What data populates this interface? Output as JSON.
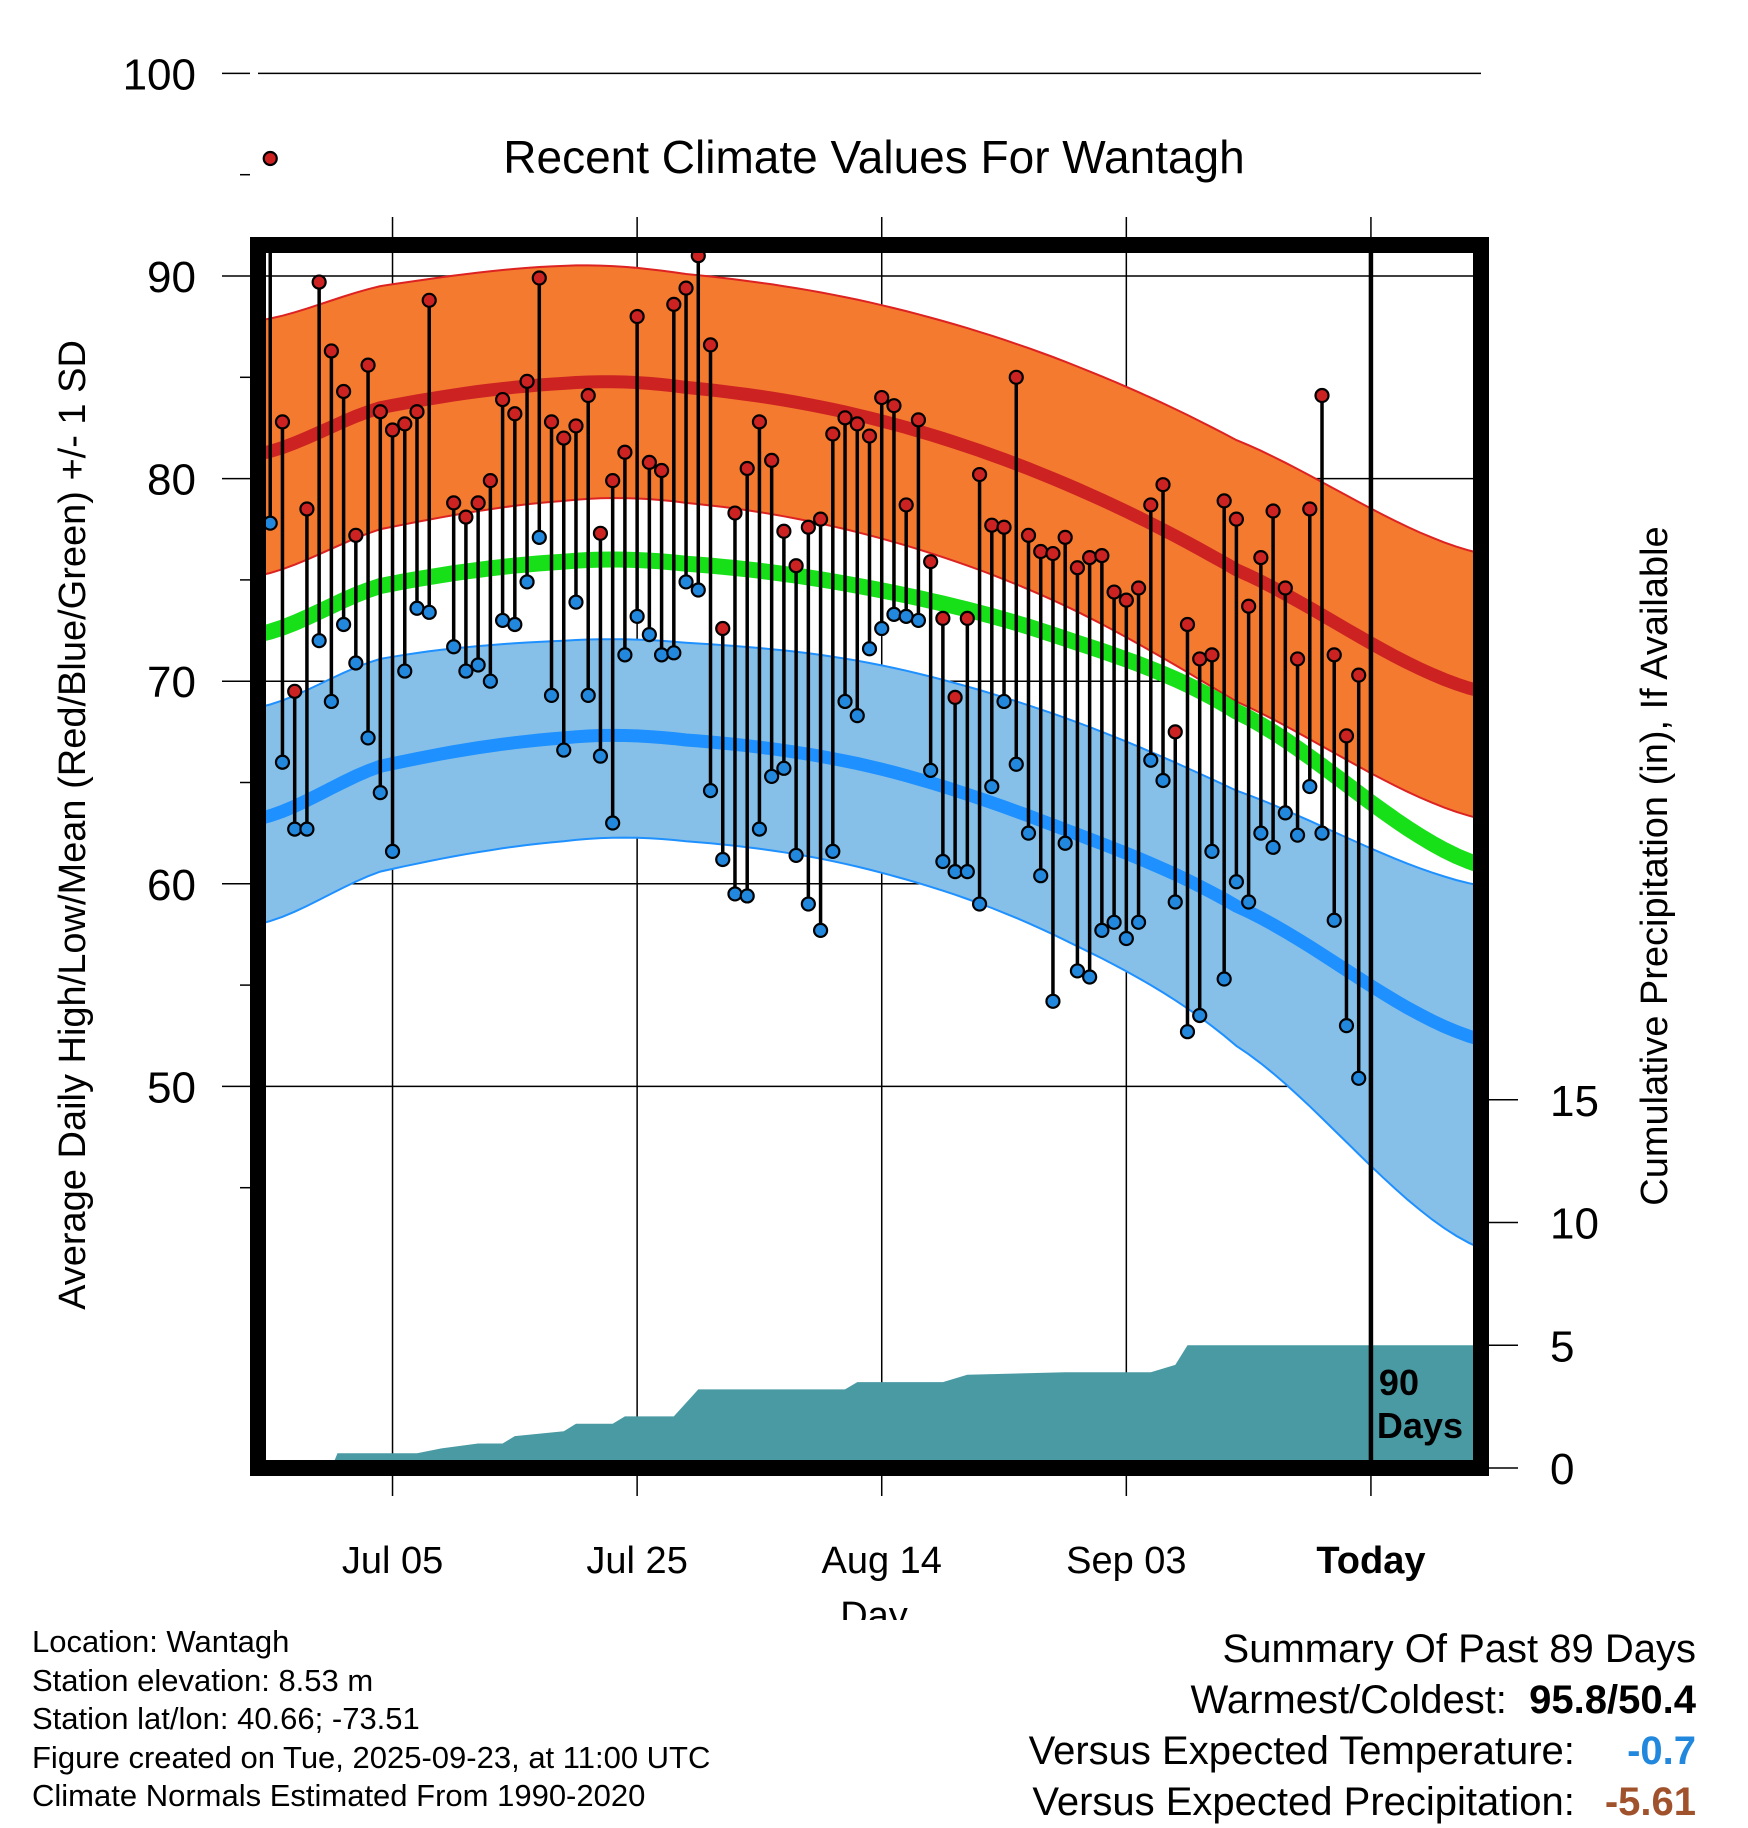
{
  "chart_data": {
    "type": "line",
    "title": "Recent Climate Values For Wantagh",
    "xlabel": "Day",
    "ylabel_left": "Average Daily High/Low/Mean (Red/Blue/Green) +/- 1 SD",
    "ylabel_right": "Cumulative Precipitation (in), If Available",
    "ylim_left": [
      40,
      102
    ],
    "ylim_right": [
      0,
      27
    ],
    "xlim": [
      0,
      100
    ],
    "yticks_left": [
      50,
      60,
      70,
      80,
      90,
      100
    ],
    "yticks_right": [
      0,
      5,
      10,
      15
    ],
    "xticks": [
      {
        "day": 11,
        "label": "Jul 05"
      },
      {
        "day": 31,
        "label": "Jul 25"
      },
      {
        "day": 51,
        "label": "Aug 14"
      },
      {
        "day": 71,
        "label": "Sep 03"
      },
      {
        "day": 91,
        "label": "Today"
      }
    ],
    "today_marker": {
      "day": 91,
      "label_line1": "90",
      "label_line2": "Days"
    },
    "normals": {
      "days": [
        0,
        10,
        25,
        35,
        50,
        65,
        80,
        100
      ],
      "high_mean": [
        81.2,
        83.5,
        84.7,
        84.5,
        83.0,
        80.0,
        75.5,
        69.5
      ],
      "high_sd_upper": [
        87.8,
        89.5,
        90.5,
        90.1,
        88.7,
        86.0,
        81.9,
        76.3
      ],
      "high_sd_lower": [
        75.2,
        77.5,
        78.9,
        78.8,
        77.2,
        74.0,
        69.0,
        63.2
      ],
      "mean": [
        72.3,
        74.7,
        75.9,
        75.8,
        74.6,
        72.3,
        68.5,
        60.9
      ],
      "low_mean": [
        63.2,
        65.8,
        67.2,
        67.1,
        65.8,
        62.9,
        58.9,
        52.3
      ],
      "low_sd_upper": [
        68.7,
        71.1,
        72.0,
        71.9,
        70.9,
        68.4,
        64.6,
        59.9
      ],
      "low_sd_lower": [
        58.0,
        60.6,
        62.1,
        62.1,
        60.7,
        57.5,
        52.0,
        42.0
      ]
    },
    "series": [
      {
        "name": "Daily High",
        "color": "#cc2222",
        "values": [
          95.8,
          82.8,
          69.5,
          78.5,
          89.7,
          86.3,
          84.3,
          77.2,
          85.6,
          83.3,
          82.4,
          82.7,
          83.3,
          88.8,
          null,
          78.8,
          78.1,
          78.8,
          79.9,
          83.9,
          83.2,
          84.8,
          89.9,
          82.8,
          82.0,
          82.6,
          84.1,
          77.3,
          79.9,
          81.3,
          88.0,
          80.8,
          80.4,
          88.6,
          89.4,
          91.0,
          86.6,
          72.6,
          78.3,
          80.5,
          82.8,
          80.9,
          77.4,
          75.7,
          77.6,
          78.0,
          82.2,
          83.0,
          82.7,
          82.1,
          84.0,
          83.6,
          78.7,
          82.9,
          75.9,
          73.1,
          69.2,
          73.1,
          80.2,
          77.7,
          77.6,
          85.0,
          77.2,
          76.4,
          76.3,
          77.1,
          75.6,
          76.1,
          76.2,
          74.4,
          74.0,
          74.6,
          78.7,
          79.7,
          67.5,
          72.8,
          71.1,
          71.3,
          78.9,
          78.0,
          73.7,
          76.1,
          78.4,
          74.6,
          71.1,
          78.5,
          84.1,
          71.3,
          67.3,
          70.3
        ]
      },
      {
        "name": "Daily Low",
        "color": "#2288dd",
        "values": [
          77.8,
          66.0,
          62.7,
          62.7,
          72.0,
          69.0,
          72.8,
          70.9,
          67.2,
          64.5,
          61.6,
          70.5,
          73.6,
          73.4,
          null,
          71.7,
          70.5,
          70.8,
          70.0,
          73.0,
          72.8,
          74.9,
          77.1,
          69.3,
          66.6,
          73.9,
          69.3,
          66.3,
          63.0,
          71.3,
          73.2,
          72.3,
          71.3,
          71.4,
          74.9,
          74.5,
          64.6,
          61.2,
          59.5,
          59.4,
          62.7,
          65.3,
          65.7,
          61.4,
          59.0,
          57.7,
          61.6,
          69.0,
          68.3,
          71.6,
          72.6,
          73.3,
          73.2,
          73.0,
          65.6,
          61.1,
          60.6,
          60.6,
          59.0,
          64.8,
          69.0,
          65.9,
          62.5,
          60.4,
          54.2,
          62.0,
          55.7,
          55.4,
          57.7,
          58.1,
          57.3,
          58.1,
          66.1,
          65.1,
          59.1,
          52.7,
          53.5,
          61.6,
          55.3,
          60.1,
          59.1,
          62.5,
          61.8,
          63.5,
          62.4,
          64.8,
          62.5,
          58.2,
          53.0,
          50.4
        ]
      },
      {
        "name": "Cumulative Precipitation (in)",
        "color": "#4a9aa4",
        "days": [
          0,
          6,
          6.5,
          13,
          15,
          18,
          20,
          21,
          25,
          26,
          29,
          30,
          34,
          36,
          48,
          49,
          56,
          58,
          66,
          73,
          75,
          76,
          80,
          100
        ],
        "values": [
          0,
          0,
          0.6,
          0.6,
          0.8,
          1.0,
          1.0,
          1.3,
          1.5,
          1.8,
          1.8,
          2.1,
          2.1,
          3.2,
          3.2,
          3.5,
          3.5,
          3.8,
          3.9,
          3.9,
          4.2,
          5.0,
          5.0,
          5.0
        ]
      }
    ]
  },
  "footer": {
    "location": "Location: Wantagh",
    "elevation": "Station elevation: 8.53 m",
    "latlon": "Station lat/lon: 40.66; -73.51",
    "created": "Figure created on Tue, 2025-09-23, at 11:00 UTC",
    "normals": "Climate Normals Estimated From 1990-2020"
  },
  "summary": {
    "title": "Summary Of Past 89 Days",
    "warmest_coldest_label": "Warmest/Coldest:",
    "warmest": "95.8",
    "separator": "/",
    "coldest": "50.4",
    "temp_label": "Versus Expected Temperature:",
    "temp_value": "-0.7",
    "temp_color": "#2288dd",
    "precip_label": "Versus Expected Precipitation:",
    "precip_value": "-5.61",
    "precip_color": "#a0522d"
  }
}
